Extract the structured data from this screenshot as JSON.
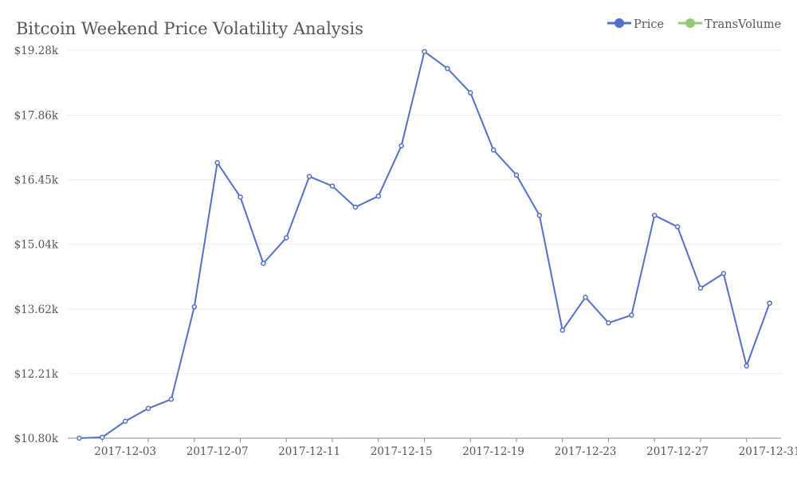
{
  "chart_data": {
    "type": "line",
    "title": "Bitcoin Weekend Price Volatility Analysis",
    "xlabel": "",
    "ylabel": "",
    "legend_position": "top-right",
    "grid": true,
    "y_ticks": [
      "$10.80k",
      "$12.21k",
      "$13.62k",
      "$15.04k",
      "$16.45k",
      "$17.86k",
      "$19.28k"
    ],
    "y_tick_values": [
      10.8,
      12.21,
      13.62,
      15.04,
      16.45,
      17.86,
      19.28
    ],
    "ylim": [
      10.8,
      19.28
    ],
    "x_ticks": [
      "2017-12-03",
      "2017-12-07",
      "2017-12-11",
      "2017-12-15",
      "2017-12-19",
      "2017-12-23",
      "2017-12-27",
      "2017-12-31"
    ],
    "x_tick_days": [
      3,
      7,
      11,
      15,
      19,
      23,
      27,
      31
    ],
    "xlim_days": [
      0.5,
      31.5
    ],
    "legend": [
      {
        "name": "Price",
        "color": "#5470c6"
      },
      {
        "name": "TransVolume",
        "color": "#91cc75"
      }
    ],
    "series": [
      {
        "name": "Price",
        "color": "#5470c6",
        "x": [
          "2017-12-01",
          "2017-12-02",
          "2017-12-03",
          "2017-12-04",
          "2017-12-05",
          "2017-12-06",
          "2017-12-07",
          "2017-12-08",
          "2017-12-09",
          "2017-12-10",
          "2017-12-11",
          "2017-12-12",
          "2017-12-13",
          "2017-12-14",
          "2017-12-15",
          "2017-12-16",
          "2017-12-17",
          "2017-12-18",
          "2017-12-19",
          "2017-12-20",
          "2017-12-21",
          "2017-12-22",
          "2017-12-23",
          "2017-12-24",
          "2017-12-25",
          "2017-12-26",
          "2017-12-27",
          "2017-12-28",
          "2017-12-29",
          "2017-12-30",
          "2017-12-31"
        ],
        "values": [
          10.8,
          10.82,
          11.17,
          11.45,
          11.65,
          13.67,
          16.82,
          16.07,
          14.62,
          15.18,
          16.52,
          16.31,
          15.85,
          16.09,
          17.19,
          19.25,
          18.88,
          18.35,
          17.1,
          16.55,
          15.67,
          13.16,
          13.88,
          13.32,
          13.49,
          15.67,
          15.42,
          14.08,
          14.4,
          12.38,
          13.75
        ]
      },
      {
        "name": "TransVolume",
        "color": "#91cc75",
        "values": []
      }
    ]
  }
}
